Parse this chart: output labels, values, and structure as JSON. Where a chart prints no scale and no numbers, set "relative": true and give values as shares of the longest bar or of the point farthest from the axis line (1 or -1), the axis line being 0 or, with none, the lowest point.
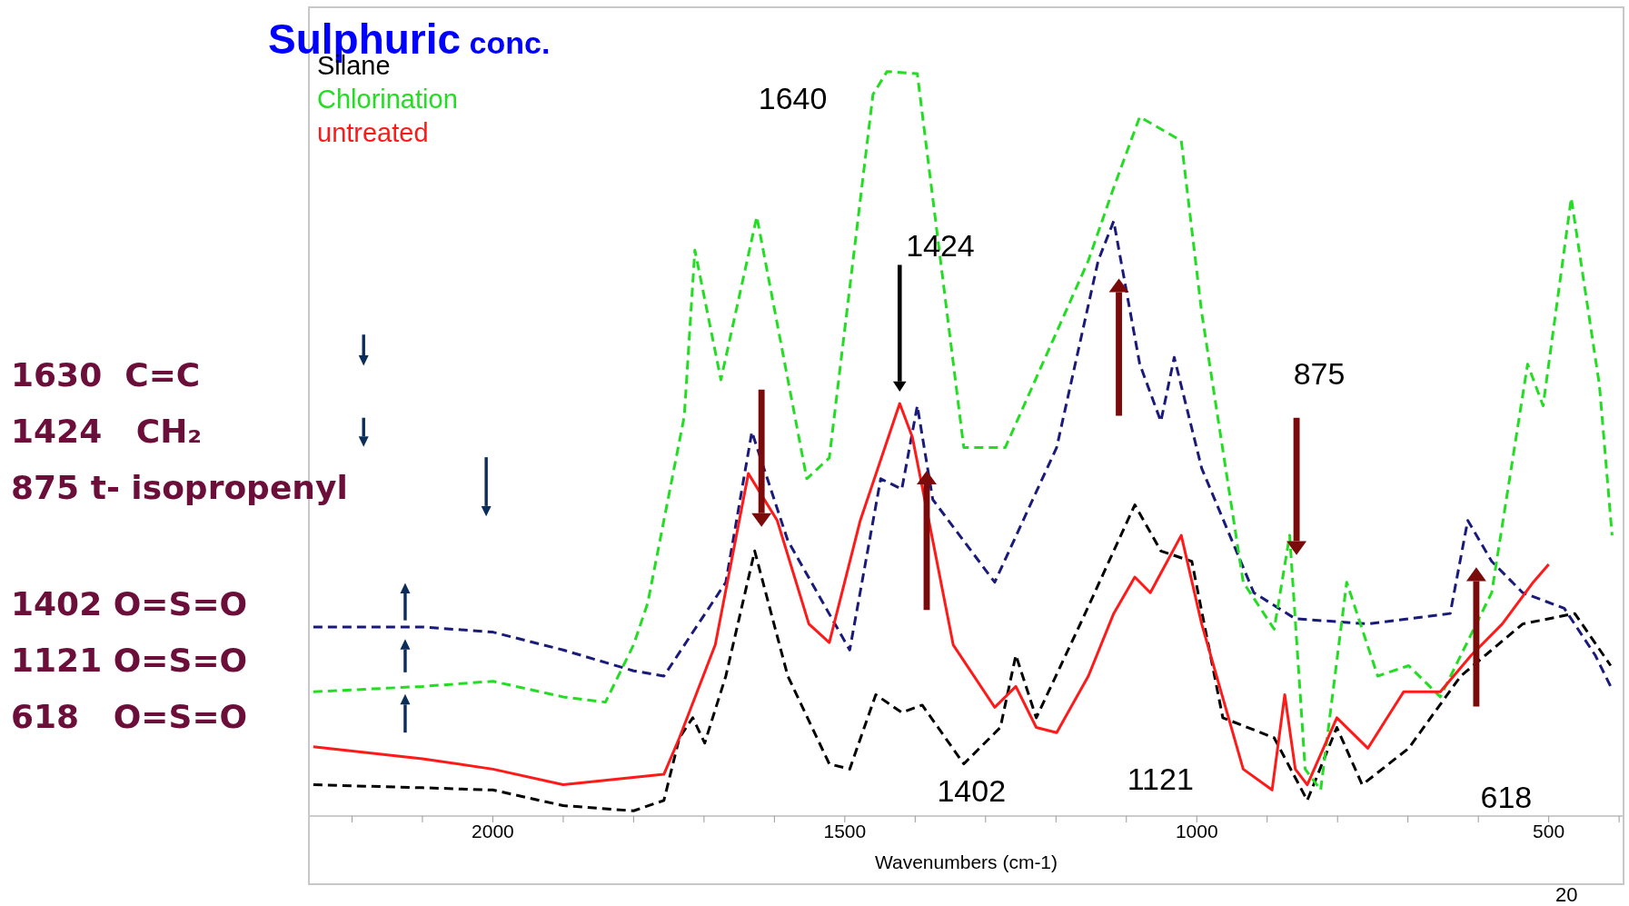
{
  "chart_data": {
    "type": "line",
    "title": "Sulphuric conc.",
    "xlabel": "Wavenumbers (cm-1)",
    "relative": true,
    "legend": "top left",
    "xlim": [
      2260,
      395
    ],
    "xticks": [
      {
        "value": 2200,
        "label": null
      },
      {
        "value": 2100,
        "label": null
      },
      2000,
      {
        "value": 1900,
        "label": null
      },
      {
        "value": 1800,
        "label": null
      },
      {
        "value": 1700,
        "label": null
      },
      {
        "value": 1600,
        "label": null
      },
      1500,
      {
        "value": 1400,
        "label": null
      },
      {
        "value": 1300,
        "label": null
      },
      {
        "value": 1200,
        "label": null
      },
      {
        "value": 1100,
        "label": null
      },
      1000,
      {
        "value": 900,
        "label": null
      },
      {
        "value": 800,
        "label": null
      },
      {
        "value": 700,
        "label": null
      },
      {
        "value": 600,
        "label": null
      },
      500,
      {
        "value": 400,
        "label": null
      }
    ],
    "series": [
      {
        "color": "#1a1a7a",
        "line_style": "dashed",
        "x": [
          2255,
          2100,
          2000,
          1900,
          1800,
          1757,
          1669,
          1632,
          1581,
          1493,
          1449,
          1419,
          1397,
          1375,
          1287,
          1199,
          1140,
          1118,
          1081,
          1051,
          1032,
          993,
          919,
          860,
          757,
          640,
          615,
          581,
          537,
          478,
          434,
          412
        ],
        "values": [
          0.254,
          0.254,
          0.247,
          0.223,
          0.195,
          0.188,
          0.314,
          0.516,
          0.37,
          0.223,
          0.453,
          0.439,
          0.551,
          0.425,
          0.314,
          0.495,
          0.746,
          0.799,
          0.607,
          0.53,
          0.616,
          0.467,
          0.3,
          0.265,
          0.258,
          0.272,
          0.397,
          0.342,
          0.3,
          0.279,
          0.216,
          0.174
        ]
      },
      {
        "name": "Silane",
        "color": "#000000",
        "line_style": "dashed",
        "x": [
          2255,
          2100,
          2000,
          1900,
          1800,
          1757,
          1735,
          1716,
          1699,
          1669,
          1628,
          1581,
          1522,
          1493,
          1456,
          1419,
          1390,
          1331,
          1279,
          1257,
          1228,
          1162,
          1088,
          1051,
          1007,
          963,
          890,
          843,
          801,
          765,
          699,
          625,
          537,
          463,
          412
        ],
        "values": [
          0.042,
          0.038,
          0.035,
          0.014,
          0.007,
          0.021,
          0.105,
          0.132,
          0.098,
          0.188,
          0.356,
          0.188,
          0.07,
          0.063,
          0.163,
          0.139,
          0.149,
          0.07,
          0.119,
          0.216,
          0.132,
          0.265,
          0.418,
          0.356,
          0.342,
          0.132,
          0.105,
          0.021,
          0.119,
          0.042,
          0.091,
          0.188,
          0.258,
          0.272,
          0.202
        ]
      },
      {
        "name": "Chlorination",
        "color": "#22dd22",
        "line_style": "dashed",
        "x": [
          2255,
          2100,
          2000,
          1900,
          1840,
          1800,
          1780,
          1728,
          1713,
          1676,
          1625,
          1554,
          1522,
          1460,
          1440,
          1397,
          1331,
          1272,
          1154,
          1118,
          1081,
          1022,
          993,
          934,
          890,
          868,
          846,
          824,
          787,
          743,
          699,
          654,
          581,
          530,
          508,
          468,
          428,
          410
        ],
        "values": [
          0.167,
          0.174,
          0.181,
          0.16,
          0.153,
          0.23,
          0.286,
          0.537,
          0.76,
          0.586,
          0.805,
          0.453,
          0.481,
          0.969,
          1.0,
          0.997,
          0.495,
          0.495,
          0.746,
          0.844,
          0.939,
          0.907,
          0.676,
          0.314,
          0.251,
          0.377,
          0.063,
          0.035,
          0.314,
          0.188,
          0.202,
          0.16,
          0.3,
          0.607,
          0.551,
          0.83,
          0.579,
          0.377
        ]
      },
      {
        "name": "untreated",
        "color": "#ff1a1a",
        "line_style": "solid",
        "x": [
          2255,
          2100,
          2000,
          1900,
          1757,
          1735,
          1684,
          1637,
          1596,
          1551,
          1522,
          1478,
          1422,
          1404,
          1375,
          1346,
          1287,
          1257,
          1228,
          1199,
          1154,
          1118,
          1088,
          1066,
          1022,
          993,
          934,
          893,
          875,
          860,
          843,
          801,
          757,
          706,
          654,
          610,
          566,
          522,
          500
        ],
        "values": [
          0.093,
          0.077,
          0.063,
          0.042,
          0.056,
          0.105,
          0.23,
          0.46,
          0.397,
          0.258,
          0.233,
          0.397,
          0.554,
          0.509,
          0.37,
          0.23,
          0.146,
          0.174,
          0.119,
          0.112,
          0.188,
          0.272,
          0.321,
          0.3,
          0.377,
          0.258,
          0.063,
          0.035,
          0.163,
          0.063,
          0.042,
          0.132,
          0.091,
          0.167,
          0.167,
          0.216,
          0.258,
          0.314,
          0.338
        ]
      }
    ],
    "annotations": [
      "1630  C=C",
      "1424   CH₂",
      "875 t- isopropenyl",
      "1402 O=S=O",
      "1121 O=S=O",
      "618   O=S=O",
      "20",
      "1640",
      "1424",
      "875",
      "1402",
      "1121",
      "618"
    ]
  }
}
